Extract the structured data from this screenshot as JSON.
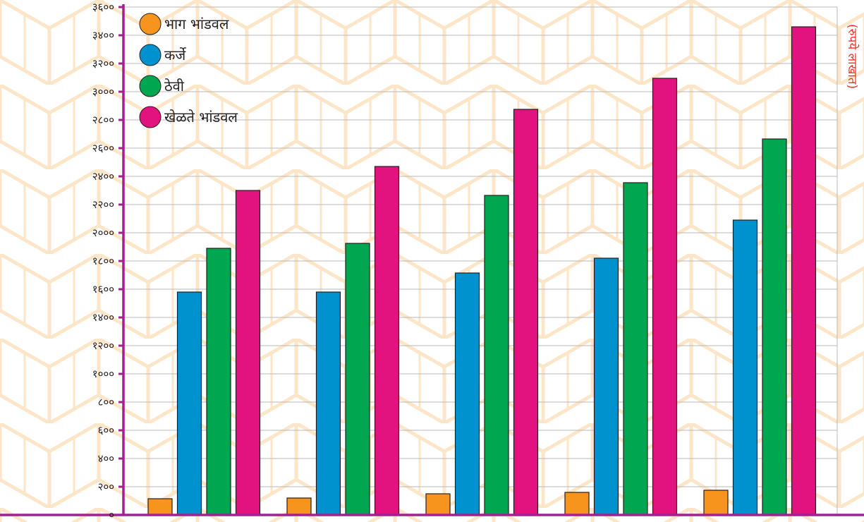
{
  "colors": {
    "background_pattern": "#fde6c8",
    "axis": "#a3208f",
    "grid": "#b8b8b8",
    "unit_label": "#ee3124",
    "series": [
      "#f7941d",
      "#0092cf",
      "#00a650",
      "#e2127e"
    ]
  },
  "chart_data": {
    "type": "bar",
    "title": "",
    "xlabel": "",
    "ylabel": "(रुपये लाखात)",
    "ylim": [
      0,
      3600
    ],
    "yticks": [
      0,
      200,
      400,
      600,
      800,
      1000,
      1200,
      1400,
      1600,
      1800,
      2000,
      2200,
      2400,
      2600,
      2800,
      3000,
      3200,
      3400,
      3600
    ],
    "ytick_labels": [
      "०",
      "२००",
      "४००",
      "६००",
      "८००",
      "१०००",
      "१२००",
      "१४००",
      "१६००",
      "१८००",
      "२०००",
      "२२००",
      "२४००",
      "२६००",
      "२८००",
      "३०००",
      "३२००",
      "३४००",
      "३६००"
    ],
    "grid": true,
    "legend_position": "top-left",
    "categories": [
      "",
      "",
      "",
      "",
      ""
    ],
    "series": [
      {
        "name": "भाग भांडवल",
        "values": [
          115,
          120,
          150,
          160,
          175
        ]
      },
      {
        "name": "कर्जे",
        "values": [
          1580,
          1580,
          1715,
          1820,
          2090
        ]
      },
      {
        "name": "ठेवी",
        "values": [
          1890,
          1925,
          2265,
          2355,
          2665
        ]
      },
      {
        "name": "खेळते भांडवल",
        "values": [
          2300,
          2470,
          2875,
          3095,
          3460
        ]
      }
    ]
  }
}
